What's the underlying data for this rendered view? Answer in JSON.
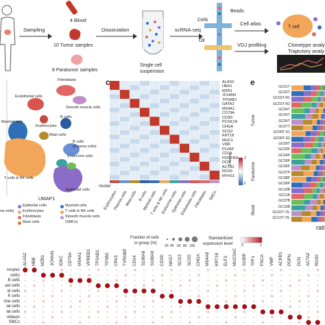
{
  "workflow": {
    "step_sampling": "Sampling",
    "step_dissociation": "Dissociation",
    "step_scrna": "scRNA-seq",
    "blood": "4 Blood",
    "tumor": "10 Tumor samples",
    "paratumor": "8 Paratumor samples",
    "suspension_line1": "Single cell",
    "suspension_line2": "suspension",
    "beads": "Beads",
    "cells": "Cells",
    "oil": "Oil",
    "cell_atlas": "Cell atlas",
    "vdj": "VDJ profiling",
    "t_cell": "T cell",
    "clonotype_line1": "Clonotype analy",
    "clonotype_line2": "Trajectory analy"
  },
  "umap": {
    "axis_label": "UMAP1",
    "clusters": {
      "fibroblasts": "Fibroblasts",
      "endothelial": "Endothelial cells",
      "smooth_muscle": "Smooth muscle cells",
      "myeloid": "Myeloid cells",
      "b_cells": "B cells",
      "erythrocytes": "Erythrocytes",
      "mast": "Mast cells",
      "b_plasma_line1": "B cells",
      "b_plasma_line2": "(Plasma cells)",
      "endocrine": "Endocrine cells",
      "t_nk": "T cells & NK cells",
      "epithelial": "Epithelial cells"
    },
    "legend": [
      {
        "label": "Epithelial cells",
        "color": "#8b6cc9"
      },
      {
        "label": "Myeloid cells",
        "color": "#2f6fb7"
      },
      {
        "label": "Erythrocytes",
        "color": "#d2b48c"
      },
      {
        "label": "T cells & NK cells",
        "color": "#f2a65a"
      },
      {
        "label": "Fibroblasts",
        "color": "#e06666"
      },
      {
        "label": "Smooth muscle cells",
        "color": "#c08fc8"
      },
      {
        "label": "Mast cells",
        "color": "#b48a2c"
      },
      {
        "label": "(SMCs)",
        "color": ""
      }
    ],
    "legend_cutoff_left": "na cells)"
  },
  "heatmap": {
    "letter": "c",
    "genes": [
      "ALAS2",
      "HBA1",
      "MZB1",
      "JCHAIN",
      "TPSAB1",
      "GATA2",
      "MS4A1",
      "CD79A",
      "CD3D",
      "PCSK1N",
      "CHGA",
      "SCG3",
      "KRT18",
      "MUC1",
      "VWF",
      "PLVAP",
      "CD34",
      "PDGFRA",
      "DCN",
      "ACTA2",
      "RGS5",
      "MYH11"
    ],
    "columns": [
      "Erythrocytes",
      "Plasma cells",
      "Mast cells",
      "B cells",
      "Myeloid cells",
      "T cells & NK cells",
      "Endocrine cells",
      "Epithelial cells",
      "Endothelial cells",
      "Fibroblasts",
      "SMCs"
    ],
    "cluster_label": "cluster",
    "zscore_label": "Z-score",
    "zscore_ticks": [
      "2",
      "1",
      "0",
      "-1",
      "-2"
    ]
  },
  "barchart": {
    "letter": "e",
    "groups": [
      {
        "name": "Tumor",
        "rows": [
          "GC01T",
          "GC02T",
          "GC03T-R1",
          "GC03T-R2",
          "GC04T",
          "GC05T",
          "GC06T",
          "GC07T",
          "GC08T-S1",
          "GC08T-S2"
        ]
      },
      {
        "name": "Paratumor",
        "rows": [
          "GC09T",
          "GC03P",
          "GC04P",
          "GC05P",
          "GC06P",
          "GC07P",
          "GC08P",
          "GC09P"
        ]
      },
      {
        "name": "Blood",
        "rows": [
          "GC10B",
          "GC11B",
          "GC07B",
          "GC10B",
          "GC02T-TIL",
          "GC10T-TIL"
        ]
      }
    ],
    "x_label_cut": "rati"
  },
  "dotplot": {
    "genes": [
      "ALAS2",
      "HBB",
      "MZB1",
      "JCHAIN",
      "IGKC",
      "CD79A",
      "MS4A1",
      "VPREB3",
      "TPSAB1",
      "TPSB2",
      "CPA3",
      "TYROBP",
      "CD14",
      "S100A8",
      "S100A9",
      "CD3D",
      "NKG7",
      "SCG3",
      "SCG5",
      "CHGA",
      "MS4A8",
      "KRT18",
      "ELF3",
      "MUC5AC",
      "S100P",
      "TFF1",
      "PSCA",
      "VWF",
      "ACKR1",
      "PDPN",
      "DCN",
      "ACTA2",
      "RGS5"
    ],
    "rows": [
      "rocytes",
      "cells)",
      "B cells",
      "ast cells",
      "id cells",
      "K cells",
      "rine cells",
      "ial cells",
      "ial cells",
      "oblasts",
      "SMCs"
    ],
    "size_legend_title_1": "Fraction of cells",
    "size_legend_title_2": "in group (%)",
    "size_ticks": [
      "20",
      "40",
      "60",
      "80",
      "100"
    ],
    "color_legend_title_1": "Standardized",
    "color_legend_title_2": "expression level",
    "color_ticks": [
      "0",
      "1"
    ]
  },
  "colors": {
    "heat_high": "#b2182b",
    "heat_low": "#2166ac",
    "dot_red": "#b2182b"
  }
}
